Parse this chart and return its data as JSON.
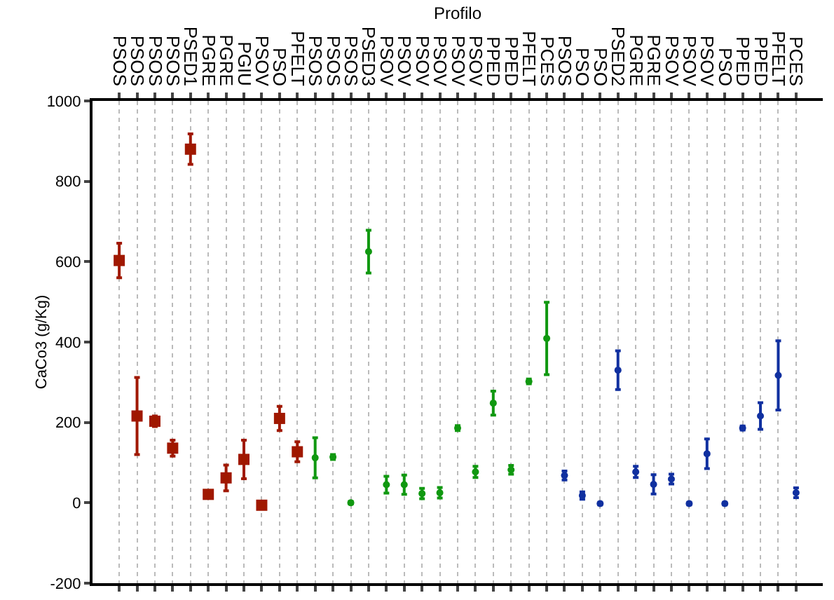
{
  "chart_data": {
    "type": "scatter",
    "xlabel": "Profilo",
    "ylabel": "CaCo3 (g/Kg)",
    "categories": [
      "PSOS",
      "PSOS",
      "PSOS",
      "PSOS",
      "PSED1",
      "PGRE",
      "PGRE",
      "PGIU",
      "PSOV",
      "PSO",
      "PFELT",
      "PSOS",
      "PSOS",
      "PSOS",
      "PSED3",
      "PSOV",
      "PSOV",
      "PSOV",
      "PSOV",
      "PSOV",
      "PSOV",
      "PPED",
      "PPED",
      "PFELT",
      "PCES",
      "PSOS",
      "PSO",
      "PSO",
      "PSED2",
      "PGRE",
      "PGRE",
      "PSOV",
      "PSOV",
      "PSOV",
      "PSO",
      "PPED",
      "PPED",
      "PFELT",
      "PCES"
    ],
    "series": [
      {
        "color": "#a01800",
        "marker": "square",
        "values": [
          603,
          216,
          203,
          136,
          880,
          21,
          62,
          108,
          -6,
          210,
          127,
          null,
          null,
          null,
          null,
          null,
          null,
          null,
          null,
          null,
          null,
          null,
          null,
          null,
          null,
          null,
          null,
          null,
          null,
          null,
          null,
          null,
          null,
          null,
          null,
          null,
          null,
          null,
          null
        ],
        "errors": [
          43,
          96,
          13,
          20,
          38,
          null,
          32,
          48,
          null,
          30,
          25,
          null,
          null,
          null,
          null,
          null,
          null,
          null,
          null,
          null,
          null,
          null,
          null,
          null,
          null,
          null,
          null,
          null,
          null,
          null,
          null,
          null,
          null,
          null,
          null,
          null,
          null,
          null,
          null
        ]
      },
      {
        "color": "#109810",
        "marker": "circle",
        "values": [
          null,
          null,
          null,
          null,
          null,
          null,
          null,
          null,
          null,
          null,
          null,
          112,
          114,
          0,
          625,
          45,
          45,
          23,
          25,
          186,
          77,
          248,
          82,
          302,
          409,
          null,
          null,
          null,
          null,
          null,
          null,
          null,
          null,
          null,
          null,
          null,
          null,
          null,
          null
        ],
        "errors": [
          null,
          null,
          null,
          null,
          null,
          null,
          null,
          null,
          null,
          null,
          null,
          50,
          6,
          3,
          53,
          21,
          24,
          13,
          13,
          6,
          14,
          30,
          11,
          6,
          90,
          null,
          null,
          null,
          null,
          null,
          null,
          null,
          null,
          null,
          null,
          null,
          null,
          null,
          null
        ]
      },
      {
        "color": "#1030a0",
        "values": [
          null,
          null,
          null,
          null,
          null,
          null,
          null,
          null,
          null,
          null,
          null,
          null,
          null,
          null,
          null,
          null,
          null,
          null,
          null,
          null,
          null,
          null,
          null,
          null,
          null,
          68,
          18,
          -2,
          330,
          77,
          46,
          59,
          -2,
          122,
          -2,
          186,
          216,
          317,
          25
        ],
        "errors": [
          null,
          null,
          null,
          null,
          null,
          null,
          null,
          null,
          null,
          null,
          null,
          null,
          null,
          null,
          null,
          null,
          null,
          null,
          null,
          null,
          null,
          null,
          null,
          null,
          null,
          11,
          9,
          3,
          48,
          14,
          24,
          12,
          3,
          37,
          3,
          5,
          33,
          86,
          12
        ]
      }
    ],
    "ylim": [
      -200,
      1000
    ],
    "yticks": [
      -200,
      0,
      200,
      400,
      600,
      800,
      1000
    ],
    "grid": "x"
  }
}
